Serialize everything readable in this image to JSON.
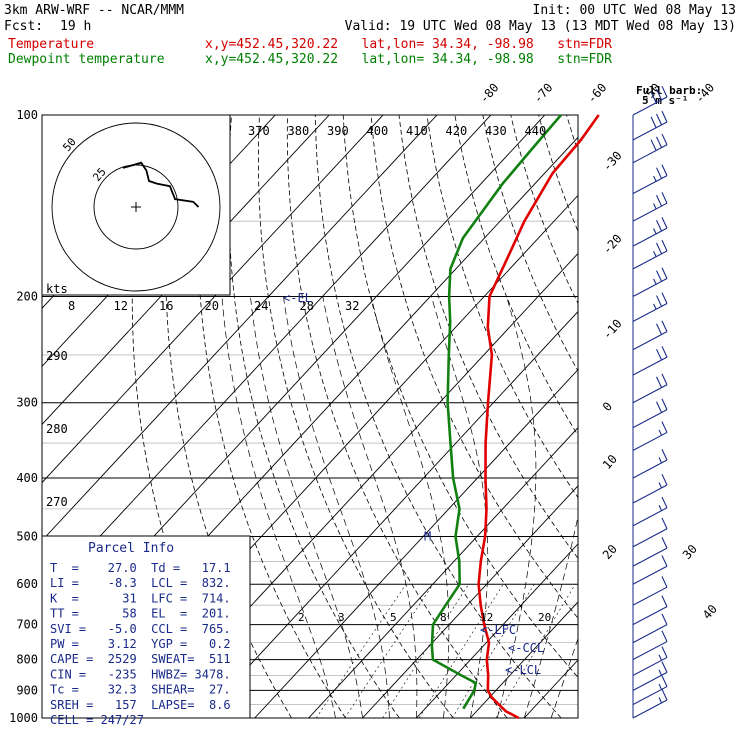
{
  "header": {
    "model": "3km ARW-WRF -- NCAR/MMM",
    "init": "Init: 00 UTC Wed 08 May 13",
    "fcst_label": "Fcst:",
    "fcst_value": "19 h",
    "valid": "Valid: 19 UTC Wed 08 May 13 (13 MDT Wed 08 May 13)",
    "temp_label": "Temperature",
    "dew_label": "Dewpoint temperature",
    "location": "x,y=452.45,320.22   lat,lon= 34.34, -98.98   stn=FDR"
  },
  "barb_legend": {
    "title": "Full barb:",
    "value": "5 m s⁻¹"
  },
  "hodograph": {
    "units": "kts",
    "ring_labels": [
      "25",
      "50"
    ]
  },
  "colors": {
    "temperature": "#e00000",
    "dewpoint": "#118011",
    "info": "#1a2a8a",
    "grid": "#000000"
  },
  "chart_data": {
    "type": "line",
    "subtype": "skew-T log-p sounding",
    "y_axis": "pressure (hPa), log scale",
    "ylim": [
      1000,
      100
    ],
    "pressure_ticks": [
      "100",
      "200",
      "300",
      "400",
      "500",
      "600",
      "700",
      "800",
      "900",
      "1000"
    ],
    "isotherm_labels": [
      "-80",
      "-70",
      "-60",
      "-50",
      "-40",
      "-30",
      "-20",
      "-10",
      "0",
      "10",
      "20",
      "30",
      "40"
    ],
    "dry_adiabat_labels": [
      "370",
      "380",
      "390",
      "400",
      "410",
      "420",
      "430",
      "440"
    ],
    "lower_theta_labels": [
      "290",
      "280",
      "270"
    ],
    "mixing_ratio_labels": [
      "8",
      "12",
      "16",
      "20",
      "24",
      "28",
      "32"
    ],
    "mixing_ratio_labels_low": [
      "2",
      "3",
      "5",
      "8",
      "12",
      "20"
    ],
    "series": [
      {
        "name": "Temperature",
        "points": [
          [
            1000,
            29.0
          ],
          [
            975,
            25.5
          ],
          [
            950,
            23.0
          ],
          [
            925,
            20.5
          ],
          [
            900,
            18.5
          ],
          [
            850,
            16.0
          ],
          [
            800,
            13.0
          ],
          [
            750,
            10.5
          ],
          [
            700,
            6.5
          ],
          [
            650,
            2.5
          ],
          [
            600,
            -1.5
          ],
          [
            550,
            -5.0
          ],
          [
            500,
            -8.5
          ],
          [
            450,
            -13.0
          ],
          [
            400,
            -18.5
          ],
          [
            350,
            -24.5
          ],
          [
            300,
            -31.0
          ],
          [
            250,
            -38.5
          ],
          [
            225,
            -44.0
          ],
          [
            200,
            -49.0
          ],
          [
            175,
            -52.0
          ],
          [
            150,
            -55.5
          ],
          [
            125,
            -58.5
          ],
          [
            110,
            -59.0
          ],
          [
            100,
            -60.0
          ]
        ]
      },
      {
        "name": "Dewpoint temperature",
        "points": [
          [
            965,
            17.1
          ],
          [
            900,
            16.0
          ],
          [
            875,
            15.0
          ],
          [
            850,
            11.0
          ],
          [
            800,
            3.0
          ],
          [
            760,
            0.5
          ],
          [
            700,
            -3.0
          ],
          [
            650,
            -4.0
          ],
          [
            600,
            -5.0
          ],
          [
            550,
            -9.0
          ],
          [
            500,
            -14.0
          ],
          [
            450,
            -18.0
          ],
          [
            400,
            -24.5
          ],
          [
            350,
            -31.0
          ],
          [
            300,
            -38.5
          ],
          [
            250,
            -46.5
          ],
          [
            220,
            -52.0
          ],
          [
            200,
            -56.5
          ],
          [
            180,
            -61.0
          ],
          [
            160,
            -64.0
          ],
          [
            130,
            -66.0
          ],
          [
            115,
            -66.5
          ],
          [
            100,
            -67.0
          ]
        ]
      }
    ],
    "annotations": [
      {
        "label": "<-EL",
        "p": 201
      },
      {
        "label": "<-LFC",
        "p": 714
      },
      {
        "label": "<-CCL",
        "p": 765
      },
      {
        "label": "<-LCL",
        "p": 832
      },
      {
        "label": "M",
        "p": 500
      }
    ],
    "wind_barbs": [
      {
        "p": 100,
        "speed_ms": 30
      },
      {
        "p": 110,
        "speed_ms": 30
      },
      {
        "p": 120,
        "speed_ms": 30
      },
      {
        "p": 135,
        "speed_ms": 25
      },
      {
        "p": 150,
        "speed_ms": 25
      },
      {
        "p": 165,
        "speed_ms": 25
      },
      {
        "p": 180,
        "speed_ms": 25
      },
      {
        "p": 200,
        "speed_ms": 25
      },
      {
        "p": 220,
        "speed_ms": 25
      },
      {
        "p": 245,
        "speed_ms": 20
      },
      {
        "p": 270,
        "speed_ms": 20
      },
      {
        "p": 300,
        "speed_ms": 20
      },
      {
        "p": 330,
        "speed_ms": 20
      },
      {
        "p": 360,
        "speed_ms": 15
      },
      {
        "p": 400,
        "speed_ms": 15
      },
      {
        "p": 440,
        "speed_ms": 15
      },
      {
        "p": 480,
        "speed_ms": 15
      },
      {
        "p": 520,
        "speed_ms": 10
      },
      {
        "p": 560,
        "speed_ms": 10
      },
      {
        "p": 600,
        "speed_ms": 10
      },
      {
        "p": 650,
        "speed_ms": 10
      },
      {
        "p": 700,
        "speed_ms": 10
      },
      {
        "p": 750,
        "speed_ms": 10
      },
      {
        "p": 800,
        "speed_ms": 10
      },
      {
        "p": 850,
        "speed_ms": 15
      },
      {
        "p": 900,
        "speed_ms": 15
      },
      {
        "p": 950,
        "speed_ms": 15
      },
      {
        "p": 1000,
        "speed_ms": 15
      }
    ],
    "hodograph_path_kts": [
      [
        -5,
        15
      ],
      [
        2,
        17
      ],
      [
        4,
        14
      ],
      [
        5,
        10
      ],
      [
        8,
        9
      ],
      [
        13,
        8
      ],
      [
        15,
        3
      ],
      [
        22,
        2
      ],
      [
        24,
        0
      ]
    ]
  },
  "parcel_info": {
    "title": "Parcel Info",
    "rows": [
      "T  =    27.0  Td =   17.1",
      "LI =    -8.3  LCL =  832.",
      "K  =      31  LFC =  714.",
      "TT =      58  EL  =  201.",
      "SVI =   -5.0  CCL =  765.",
      "PW =    3.12  YGP =   0.2",
      "CAPE =  2529  SWEAT=  511",
      "CIN =   -235  HWBZ= 3478.",
      "Tc =    32.3  SHEAR=  27.",
      "SREH =   157  LAPSE=  8.6",
      "CELL = 247/27"
    ]
  }
}
